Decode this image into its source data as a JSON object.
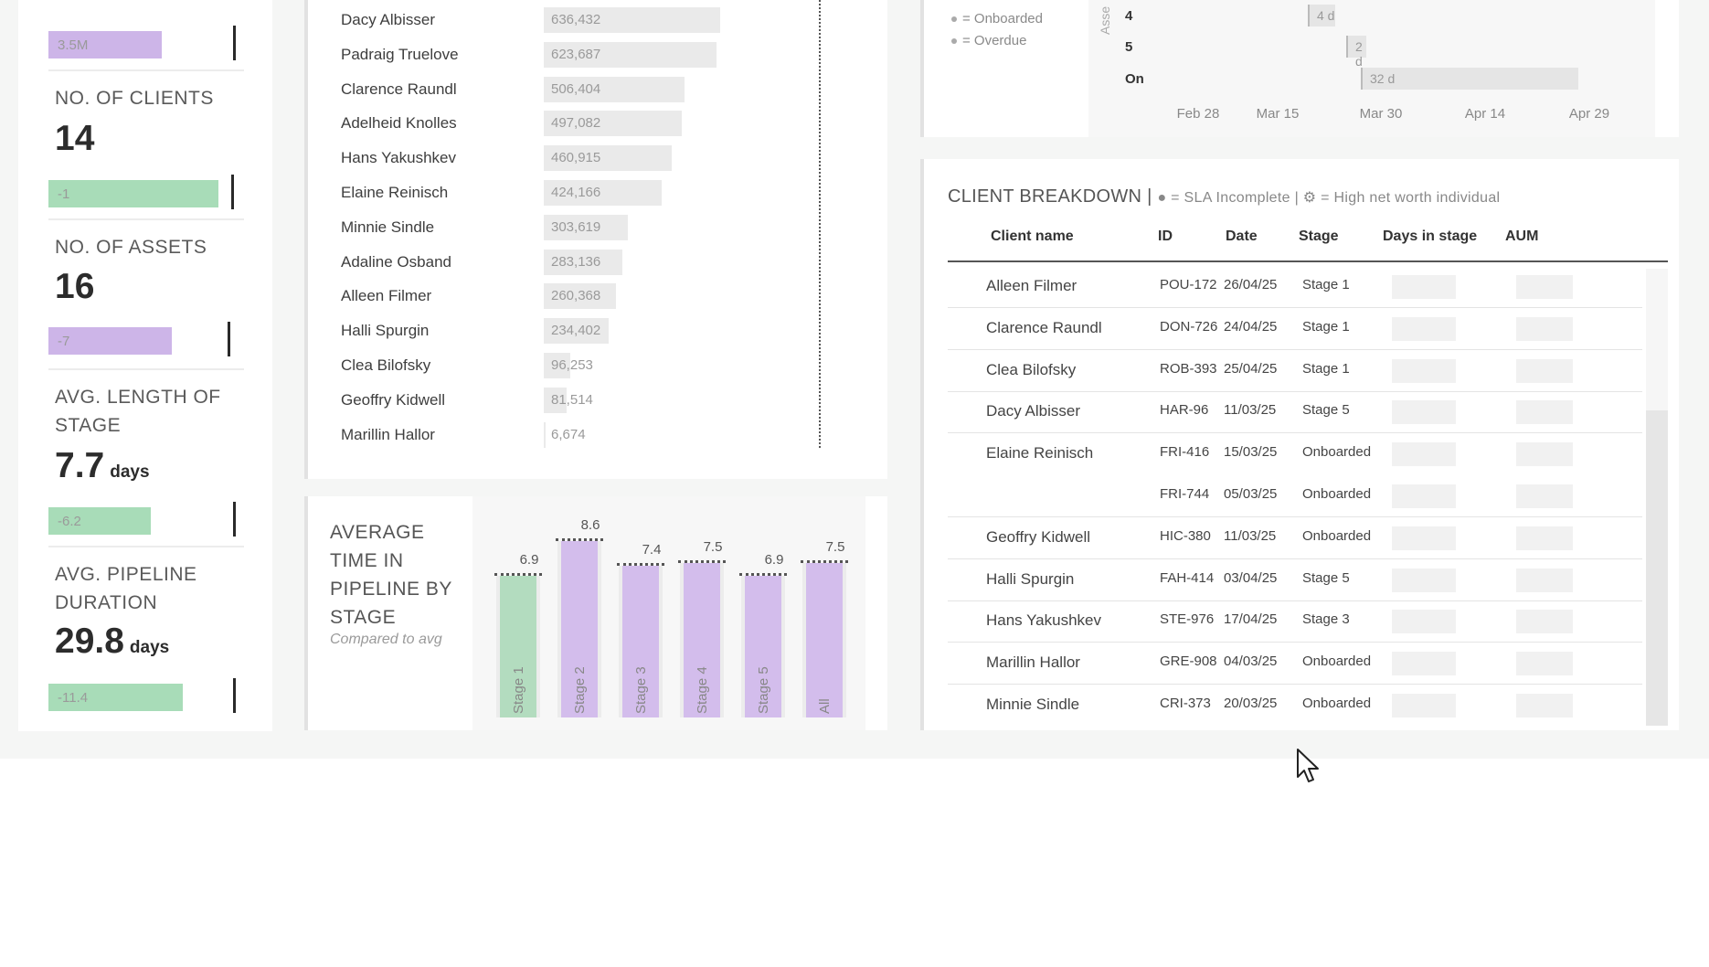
{
  "kpi": {
    "top_bar_label": "3.5M",
    "clients": {
      "label": "NO. OF CLIENTS",
      "value": "14",
      "delta": "-1"
    },
    "assets": {
      "label": "NO. OF ASSETS",
      "value": "16",
      "delta": "-7"
    },
    "stage_length": {
      "label": "AVG. LENGTH OF STAGE",
      "value": "7.7",
      "unit": "days",
      "delta": "-6.2"
    },
    "pipeline": {
      "label": "AVG. PIPELINE DURATION",
      "value": "29.8",
      "unit": "days",
      "delta": "-11.4"
    }
  },
  "aum_list": {
    "rows": [
      {
        "name": "Dacy Albisser",
        "value": "636,432"
      },
      {
        "name": "Padraig Truelove",
        "value": "623,687"
      },
      {
        "name": "Clarence Raundl",
        "value": "506,404"
      },
      {
        "name": "Adelheid Knolles",
        "value": "497,082"
      },
      {
        "name": "Hans Yakushkev",
        "value": "460,915"
      },
      {
        "name": "Elaine Reinisch",
        "value": "424,166"
      },
      {
        "name": "Minnie Sindle",
        "value": "303,619"
      },
      {
        "name": "Adaline Osband",
        "value": "283,136"
      },
      {
        "name": "Alleen Filmer",
        "value": "260,368"
      },
      {
        "name": "Halli Spurgin",
        "value": "234,402"
      },
      {
        "name": "Clea Bilofsky",
        "value": "96,253"
      },
      {
        "name": "Geoffry Kidwell",
        "value": "81,514"
      },
      {
        "name": "Marillin Hallor",
        "value": "6,674"
      }
    ],
    "bar_values": [
      636432,
      623687,
      506404,
      497082,
      460915,
      424166,
      303619,
      283136,
      260368,
      234402,
      96253,
      81514,
      6674
    ]
  },
  "avg_time": {
    "title": "AVERAGE TIME IN PIPELINE BY STAGE",
    "subtitle": "Compared to avg"
  },
  "chart_data": {
    "type": "bar",
    "categories": [
      "Stage 1",
      "Stage 2",
      "Stage 3",
      "Stage 4",
      "Stage 5",
      "All"
    ],
    "values": [
      6.9,
      8.6,
      7.4,
      7.5,
      6.9,
      7.5
    ],
    "value_labels": [
      "6.9",
      "8.6",
      "7.4",
      "7.5",
      "6.9",
      "7.5"
    ],
    "colors": [
      "#b3dcbf",
      "#d3bdec",
      "#d3bdec",
      "#d3bdec",
      "#d3bdec",
      "#d3bdec"
    ],
    "ylim": [
      0,
      10
    ]
  },
  "timeline": {
    "legend": [
      "= Onboarded",
      "= Overdue"
    ],
    "axis_title": "Asse",
    "rows": [
      {
        "label": "4",
        "bar_text": "4 d"
      },
      {
        "label": "5",
        "bar_text": "2 d"
      },
      {
        "label": "On",
        "bar_text": "32 d"
      }
    ],
    "ticks": [
      "Feb 28",
      "Mar 15",
      "Mar 30",
      "Apr 14",
      "Apr 29"
    ]
  },
  "client_breakdown": {
    "title": "CLIENT BREAKDOWN |",
    "legend": "● = SLA Incomplete | ⚙ = High net worth individual",
    "headers": [
      "Client name",
      "ID",
      "Date",
      "Stage",
      "Days in stage",
      "AUM"
    ],
    "rows": [
      {
        "name": "Alleen Filmer",
        "id": "POU-172",
        "date": "26/04/25",
        "stage": "Stage 1"
      },
      {
        "name": "Clarence Raundl",
        "id": "DON-726",
        "date": "24/04/25",
        "stage": "Stage 1"
      },
      {
        "name": "Clea Bilofsky",
        "id": "ROB-393",
        "date": "25/04/25",
        "stage": "Stage 1"
      },
      {
        "name": "Dacy Albisser",
        "id": "HAR-96",
        "date": "11/03/25",
        "stage": "Stage 5"
      },
      {
        "name": "Elaine Reinisch",
        "id": "FRI-416",
        "date": "15/03/25",
        "stage": "Onboarded"
      },
      {
        "name": "",
        "id": "FRI-744",
        "date": "05/03/25",
        "stage": "Onboarded"
      },
      {
        "name": "Geoffry Kidwell",
        "id": "HIC-380",
        "date": "11/03/25",
        "stage": "Onboarded"
      },
      {
        "name": "Halli Spurgin",
        "id": "FAH-414",
        "date": "03/04/25",
        "stage": "Stage 5"
      },
      {
        "name": "Hans Yakushkev",
        "id": "STE-976",
        "date": "17/04/25",
        "stage": "Stage 3"
      },
      {
        "name": "Marillin Hallor",
        "id": "GRE-908",
        "date": "04/03/25",
        "stage": "Onboarded"
      },
      {
        "name": "Minnie Sindle",
        "id": "CRI-373",
        "date": "20/03/25",
        "stage": "Onboarded"
      }
    ]
  }
}
